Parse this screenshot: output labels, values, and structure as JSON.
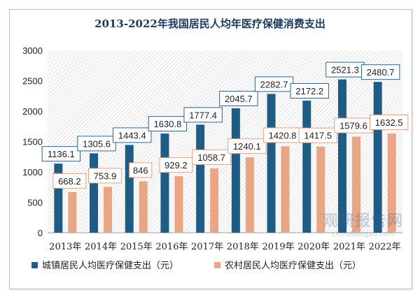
{
  "watermark": {
    "brand": "观研报告网",
    "url": "chinabaogao.com"
  },
  "colors": {
    "urban": "#1f5c85",
    "rural": "#eaa585",
    "label_border_urban": "#2a6494",
    "label_border_rural": "#e59f7f",
    "hatch": "#d9d9d9"
  },
  "chart_data": {
    "type": "bar",
    "title": "2013-2022年我国居民人均年医疗保健消费支出",
    "categories": [
      "2013年",
      "2014年",
      "2015年",
      "2016年",
      "2017年",
      "2018年",
      "2019年",
      "2020年",
      "2021年",
      "2022年"
    ],
    "series": [
      {
        "name": "城镇居民人均医疗保健支出（元）",
        "values": [
          1136.1,
          1305.6,
          1443.4,
          1630.8,
          1777.4,
          2045.7,
          2282.7,
          2172.2,
          2521.3,
          2480.7
        ]
      },
      {
        "name": "农村居民人均医疗保健支出（元）",
        "values": [
          668.2,
          753.9,
          846,
          929.2,
          1058.7,
          1240.1,
          1420.8,
          1417.5,
          1579.6,
          1632.5
        ]
      }
    ],
    "ylim": [
      0,
      3000
    ],
    "yticks": [
      0,
      500,
      1000,
      1500,
      2000,
      2500,
      3000
    ],
    "grid": false,
    "legend_position": "bottom-left"
  }
}
